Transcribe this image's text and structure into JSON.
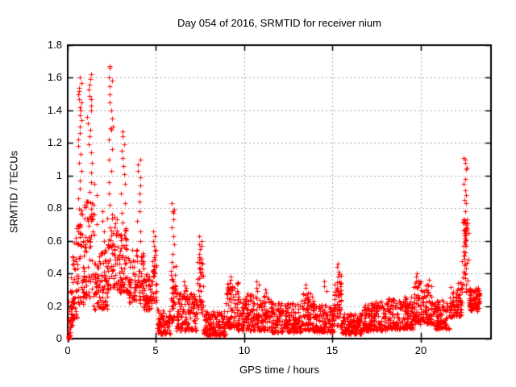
{
  "chart_data": {
    "type": "scatter",
    "title": "Day 054 of 2016, SRMTID for receiver nium",
    "xlabel": "GPS time / hours",
    "ylabel": "SRMTID / TECUs",
    "series_name": "SRMTID",
    "xlim": [
      0,
      24
    ],
    "ylim": [
      0,
      1.8
    ],
    "xticks": [
      0,
      5,
      10,
      15,
      20
    ],
    "xtick_labels": [
      "0",
      "5",
      "10",
      "15",
      "20"
    ],
    "yticks": [
      0,
      0.2,
      0.4,
      0.6,
      0.8,
      1,
      1.2,
      1.4,
      1.6,
      1.8
    ],
    "ytick_labels": [
      "0",
      "0.2",
      "0.4",
      "0.6",
      "0.8",
      "1",
      "1.2",
      "1.4",
      "1.6",
      "1.8"
    ],
    "grid": true,
    "legend": "none",
    "marker": "plus",
    "marker_color": "#ff0000",
    "grid_color": "#a8a8a8",
    "border_color": "#000000",
    "background": "#ffffff",
    "seed": 2016054,
    "envelope": [
      {
        "x0": 0.0,
        "x1": 0.15,
        "lo": 0.0,
        "hi": 0.04,
        "n": 14
      },
      {
        "x0": 0.05,
        "x1": 0.35,
        "lo": 0.06,
        "hi": 0.3,
        "n": 30
      },
      {
        "x0": 0.2,
        "x1": 0.5,
        "lo": 0.12,
        "hi": 0.5,
        "n": 35
      },
      {
        "x0": 0.25,
        "x1": 0.45,
        "lo": 0.35,
        "hi": 0.65,
        "n": 10,
        "p": 1
      },
      {
        "x0": 0.5,
        "x1": 0.9,
        "lo": 0.2,
        "hi": 0.8,
        "n": 55,
        "p": 1.3
      },
      {
        "x0": 0.9,
        "x1": 1.45,
        "lo": 0.25,
        "hi": 0.85,
        "n": 70,
        "p": 1.3
      },
      {
        "x0": 1.45,
        "x1": 2.25,
        "lo": 0.18,
        "hi": 0.55,
        "n": 95
      },
      {
        "x0": 2.25,
        "x1": 2.8,
        "lo": 0.3,
        "hi": 0.75,
        "n": 65,
        "p": 1.3
      },
      {
        "x0": 2.8,
        "x1": 3.45,
        "lo": 0.28,
        "hi": 0.68,
        "n": 75,
        "p": 1.3
      },
      {
        "x0": 3.45,
        "x1": 4.3,
        "lo": 0.22,
        "hi": 0.55,
        "n": 90
      },
      {
        "x0": 4.3,
        "x1": 4.8,
        "lo": 0.18,
        "hi": 0.42,
        "n": 55
      },
      {
        "x0": 4.8,
        "x1": 5.05,
        "lo": 0.22,
        "hi": 0.55,
        "n": 30,
        "p": 1
      },
      {
        "x0": 5.05,
        "x1": 5.8,
        "lo": 0.03,
        "hi": 0.18,
        "n": 90
      },
      {
        "x0": 5.8,
        "x1": 6.15,
        "lo": 0.1,
        "hi": 0.45,
        "n": 40,
        "p": 1.2
      },
      {
        "x0": 6.15,
        "x1": 7.35,
        "lo": 0.05,
        "hi": 0.28,
        "n": 140
      },
      {
        "x0": 6.5,
        "x1": 6.75,
        "lo": 0.18,
        "hi": 0.35,
        "n": 10,
        "p": 1
      },
      {
        "x0": 7.35,
        "x1": 7.7,
        "lo": 0.15,
        "hi": 0.5,
        "n": 40,
        "p": 1.2
      },
      {
        "x0": 7.7,
        "x1": 8.95,
        "lo": 0.02,
        "hi": 0.17,
        "n": 150
      },
      {
        "x0": 8.95,
        "x1": 9.65,
        "lo": 0.07,
        "hi": 0.35,
        "n": 85
      },
      {
        "x0": 9.65,
        "x1": 10.45,
        "lo": 0.05,
        "hi": 0.28,
        "n": 95
      },
      {
        "x0": 10.45,
        "x1": 11.55,
        "lo": 0.05,
        "hi": 0.27,
        "n": 130
      },
      {
        "x0": 11.55,
        "x1": 13.25,
        "lo": 0.04,
        "hi": 0.22,
        "n": 200
      },
      {
        "x0": 13.25,
        "x1": 13.95,
        "lo": 0.05,
        "hi": 0.28,
        "n": 85
      },
      {
        "x0": 13.95,
        "x1": 15.1,
        "lo": 0.04,
        "hi": 0.21,
        "n": 135
      },
      {
        "x0": 15.1,
        "x1": 15.55,
        "lo": 0.07,
        "hi": 0.4,
        "n": 55,
        "p": 1.2
      },
      {
        "x0": 15.55,
        "x1": 16.65,
        "lo": 0.03,
        "hi": 0.16,
        "n": 130
      },
      {
        "x0": 16.65,
        "x1": 18.05,
        "lo": 0.05,
        "hi": 0.23,
        "n": 165
      },
      {
        "x0": 18.05,
        "x1": 19.55,
        "lo": 0.06,
        "hi": 0.26,
        "n": 175
      },
      {
        "x0": 19.55,
        "x1": 20.05,
        "lo": 0.09,
        "hi": 0.37,
        "n": 60
      },
      {
        "x0": 20.05,
        "x1": 20.65,
        "lo": 0.09,
        "hi": 0.33,
        "n": 70
      },
      {
        "x0": 20.65,
        "x1": 21.65,
        "lo": 0.06,
        "hi": 0.24,
        "n": 115
      },
      {
        "x0": 21.65,
        "x1": 22.35,
        "lo": 0.13,
        "hi": 0.35,
        "n": 80,
        "p": 1.2
      },
      {
        "x0": 22.35,
        "x1": 22.72,
        "lo": 0.28,
        "hi": 0.75,
        "n": 45,
        "p": 1
      },
      {
        "x0": 22.72,
        "x1": 23.35,
        "lo": 0.17,
        "hi": 0.32,
        "n": 85,
        "p": 1.2
      }
    ],
    "spikes": [
      {
        "x": 0.68,
        "dx": 0.12,
        "values": [
          1.6,
          1.57,
          1.54,
          1.52,
          1.5,
          1.47,
          1.45,
          1.42,
          1.4,
          1.37,
          1.34,
          1.3,
          1.26,
          1.22,
          1.18,
          1.13,
          1.08,
          1.03,
          0.97,
          0.92,
          0.86
        ]
      },
      {
        "x": 1.22,
        "dx": 0.14,
        "values": [
          1.62,
          1.59,
          1.56,
          1.53,
          1.49,
          1.47,
          1.47,
          1.43,
          1.4,
          1.36,
          1.32,
          1.28,
          1.24,
          1.19,
          1.14,
          1.08,
          1.02,
          0.96,
          0.9,
          0.84
        ]
      },
      {
        "x": 1.58,
        "dx": 0.1,
        "values": [
          0.95,
          0.88,
          0.82,
          0.76,
          0.7,
          0.64
        ]
      },
      {
        "x": 2.02,
        "dx": 0.1,
        "values": [
          0.78,
          0.72,
          0.66,
          0.6
        ]
      },
      {
        "x": 2.45,
        "dx": 0.12,
        "values": [
          1.67,
          1.66,
          1.6,
          1.58,
          1.55,
          1.5,
          1.45,
          1.4,
          1.35,
          1.3,
          1.29,
          1.28,
          1.22,
          1.16,
          1.1,
          1.03,
          0.96,
          0.89,
          0.82,
          0.76
        ]
      },
      {
        "x": 3.15,
        "dx": 0.12,
        "values": [
          1.27,
          1.24,
          1.19,
          1.15,
          1.11,
          1.06,
          1.01,
          0.95,
          0.89,
          0.83,
          0.77,
          0.71
        ]
      },
      {
        "x": 4.02,
        "dx": 0.12,
        "values": [
          1.1,
          1.07,
          1.03,
          0.99,
          0.94,
          0.89,
          0.84,
          0.78,
          0.72,
          0.66,
          0.6
        ]
      },
      {
        "x": 4.9,
        "dx": 0.08,
        "values": [
          0.66,
          0.63,
          0.6,
          0.57,
          0.54,
          0.5
        ]
      },
      {
        "x": 5.95,
        "dx": 0.09,
        "values": [
          0.83,
          0.79,
          0.78,
          0.77,
          0.73,
          0.68,
          0.63,
          0.58,
          0.52,
          0.47
        ]
      },
      {
        "x": 7.52,
        "dx": 0.1,
        "values": [
          0.63,
          0.6,
          0.58,
          0.57,
          0.55,
          0.52,
          0.49,
          0.46,
          0.43
        ]
      },
      {
        "x": 9.2,
        "dx": 0.12,
        "values": [
          0.38,
          0.36,
          0.34,
          0.32,
          0.3
        ]
      },
      {
        "x": 10.75,
        "dx": 0.08,
        "values": [
          0.35,
          0.33,
          0.31,
          0.29
        ]
      },
      {
        "x": 11.25,
        "dx": 0.06,
        "values": [
          0.3,
          0.28
        ]
      },
      {
        "x": 13.55,
        "dx": 0.08,
        "values": [
          0.33,
          0.31,
          0.28
        ]
      },
      {
        "x": 14.6,
        "dx": 0.08,
        "values": [
          0.35,
          0.32,
          0.29
        ]
      },
      {
        "x": 15.32,
        "dx": 0.08,
        "values": [
          0.46,
          0.44,
          0.41,
          0.38,
          0.35
        ]
      },
      {
        "x": 19.72,
        "dx": 0.08,
        "values": [
          0.4,
          0.38,
          0.35
        ]
      },
      {
        "x": 20.42,
        "dx": 0.08,
        "values": [
          0.36,
          0.33
        ]
      },
      {
        "x": 22.52,
        "dx": 0.1,
        "values": [
          1.11,
          1.1,
          1.08,
          1.05,
          1.04,
          0.98,
          0.95,
          0.91,
          0.88,
          0.85,
          0.83,
          0.78,
          0.73,
          0.68,
          0.65,
          0.61,
          0.57,
          0.53,
          0.49,
          0.45,
          0.41,
          0.37,
          0.33
        ]
      }
    ]
  }
}
